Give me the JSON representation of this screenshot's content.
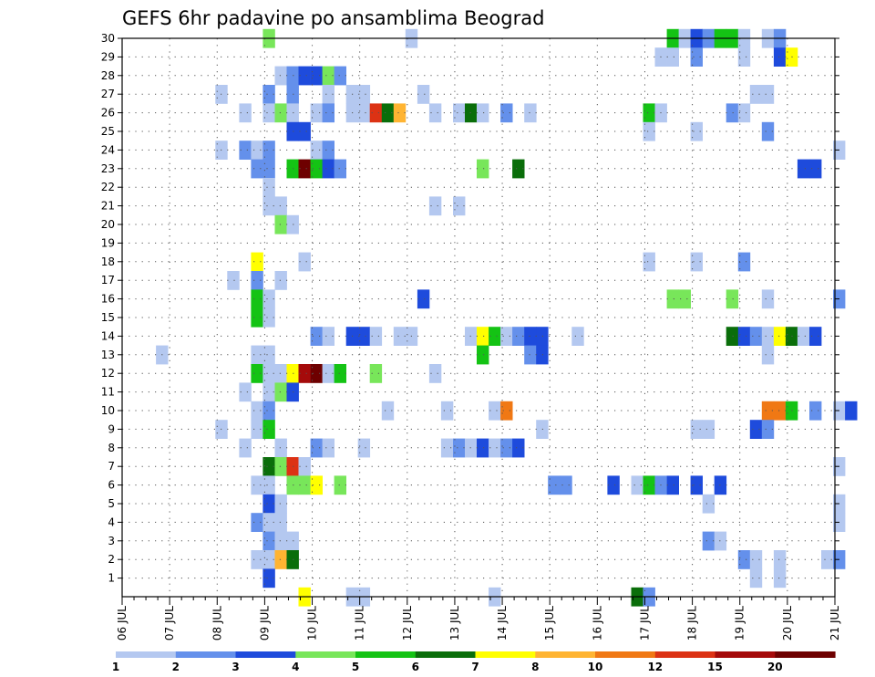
{
  "chart_data": {
    "type": "heatmap",
    "title": "GEFS 6hr padavine po ansamblima Beograd",
    "xlabel": "",
    "ylabel": "",
    "x_tick_labels": [
      "06 JUL",
      "07 JUL",
      "08 JUL",
      "09 JUL",
      "10 JUL",
      "11 JUL",
      "12 JUL",
      "13 JUL",
      "14 JUL",
      "15 JUL",
      "16 JUL",
      "17 JUL",
      "18 JUL",
      "19 JUL",
      "20 JUL",
      "21 JUL"
    ],
    "x_steps_per_day": 4,
    "y_tick_labels": [
      "1",
      "2",
      "3",
      "4",
      "5",
      "6",
      "7",
      "8",
      "9",
      "10",
      "11",
      "12",
      "13",
      "14",
      "15",
      "16",
      "17",
      "18",
      "19",
      "20",
      "21",
      "22",
      "23",
      "24",
      "25",
      "26",
      "27",
      "28",
      "29",
      "30"
    ],
    "member_range": [
      0,
      30
    ],
    "grid": true,
    "legend_position": "bottom",
    "colorbar": {
      "labels": [
        "1",
        "2",
        "3",
        "4",
        "5",
        "6",
        "7",
        "8",
        "10",
        "12",
        "15",
        "20"
      ],
      "colors": [
        "#b4c8f0",
        "#6490eb",
        "#1e4bdc",
        "#78e65a",
        "#14c314",
        "#0a6e0a",
        "#ffff00",
        "#ffb432",
        "#f07814",
        "#dc3214",
        "#a50a0a",
        "#6e0000"
      ]
    },
    "cells": [
      [
        0,
        30,
        4
      ],
      [
        12,
        30,
        1
      ],
      [
        34,
        30,
        5
      ],
      [
        35,
        30,
        1
      ],
      [
        36,
        30,
        3
      ],
      [
        37,
        30,
        2
      ],
      [
        38,
        30,
        5
      ],
      [
        39,
        30,
        5
      ],
      [
        40,
        30,
        1
      ],
      [
        42,
        30,
        1
      ],
      [
        43,
        30,
        2
      ],
      [
        33,
        29,
        1
      ],
      [
        34,
        29,
        1
      ],
      [
        36,
        29,
        2
      ],
      [
        40,
        29,
        1
      ],
      [
        43,
        29,
        3
      ],
      [
        44,
        29,
        7
      ],
      [
        1,
        28,
        1
      ],
      [
        2,
        28,
        2
      ],
      [
        3,
        28,
        3
      ],
      [
        4,
        28,
        3
      ],
      [
        5,
        28,
        4
      ],
      [
        6,
        28,
        2
      ],
      [
        -4,
        27,
        1
      ],
      [
        0,
        27,
        2
      ],
      [
        2,
        27,
        2
      ],
      [
        5,
        27,
        1
      ],
      [
        7,
        27,
        1
      ],
      [
        8,
        27,
        1
      ],
      [
        13,
        27,
        1
      ],
      [
        41,
        27,
        1
      ],
      [
        42,
        27,
        1
      ],
      [
        -2,
        26,
        1
      ],
      [
        0,
        26,
        1
      ],
      [
        1,
        26,
        4
      ],
      [
        2,
        26,
        1
      ],
      [
        4,
        26,
        1
      ],
      [
        5,
        26,
        2
      ],
      [
        7,
        26,
        1
      ],
      [
        8,
        26,
        1
      ],
      [
        9,
        26,
        10
      ],
      [
        10,
        26,
        6
      ],
      [
        11,
        26,
        8
      ],
      [
        14,
        26,
        1
      ],
      [
        16,
        26,
        1
      ],
      [
        17,
        26,
        6
      ],
      [
        18,
        26,
        1
      ],
      [
        20,
        26,
        2
      ],
      [
        22,
        26,
        1
      ],
      [
        32,
        26,
        5
      ],
      [
        33,
        26,
        1
      ],
      [
        39,
        26,
        2
      ],
      [
        40,
        26,
        1
      ],
      [
        2,
        25,
        3
      ],
      [
        3,
        25,
        3
      ],
      [
        32,
        25,
        1
      ],
      [
        36,
        25,
        1
      ],
      [
        42,
        25,
        2
      ],
      [
        -4,
        24,
        1
      ],
      [
        -2,
        24,
        2
      ],
      [
        -1,
        24,
        1
      ],
      [
        0,
        24,
        2
      ],
      [
        4,
        24,
        1
      ],
      [
        5,
        24,
        2
      ],
      [
        48,
        24,
        1
      ],
      [
        -1,
        23,
        2
      ],
      [
        0,
        23,
        2
      ],
      [
        2,
        23,
        5
      ],
      [
        3,
        23,
        12
      ],
      [
        4,
        23,
        5
      ],
      [
        5,
        23,
        3
      ],
      [
        6,
        23,
        2
      ],
      [
        18,
        23,
        4
      ],
      [
        21,
        23,
        6
      ],
      [
        45,
        23,
        3
      ],
      [
        46,
        23,
        3
      ],
      [
        0,
        22,
        1
      ],
      [
        0,
        21,
        1
      ],
      [
        1,
        21,
        1
      ],
      [
        14,
        21,
        1
      ],
      [
        16,
        21,
        1
      ],
      [
        1,
        20,
        4
      ],
      [
        2,
        20,
        1
      ],
      [
        -1,
        18,
        7
      ],
      [
        3,
        18,
        1
      ],
      [
        32,
        18,
        1
      ],
      [
        36,
        18,
        1
      ],
      [
        40,
        18,
        2
      ],
      [
        -3,
        17,
        1
      ],
      [
        -1,
        17,
        2
      ],
      [
        1,
        17,
        1
      ],
      [
        -1,
        16,
        5
      ],
      [
        0,
        16,
        1
      ],
      [
        13,
        16,
        3
      ],
      [
        34,
        16,
        4
      ],
      [
        35,
        16,
        4
      ],
      [
        39,
        16,
        4
      ],
      [
        42,
        16,
        1
      ],
      [
        48,
        16,
        2
      ],
      [
        -1,
        15,
        5
      ],
      [
        0,
        15,
        1
      ],
      [
        4,
        14,
        2
      ],
      [
        5,
        14,
        1
      ],
      [
        7,
        14,
        3
      ],
      [
        8,
        14,
        3
      ],
      [
        9,
        14,
        1
      ],
      [
        11,
        14,
        1
      ],
      [
        12,
        14,
        1
      ],
      [
        17,
        14,
        1
      ],
      [
        18,
        14,
        7
      ],
      [
        19,
        14,
        5
      ],
      [
        20,
        14,
        1
      ],
      [
        21,
        14,
        2
      ],
      [
        22,
        14,
        3
      ],
      [
        23,
        14,
        3
      ],
      [
        26,
        14,
        1
      ],
      [
        39,
        14,
        6
      ],
      [
        40,
        14,
        3
      ],
      [
        41,
        14,
        2
      ],
      [
        42,
        14,
        1
      ],
      [
        43,
        14,
        7
      ],
      [
        44,
        14,
        6
      ],
      [
        45,
        14,
        1
      ],
      [
        46,
        14,
        3
      ],
      [
        -9,
        13,
        1
      ],
      [
        18,
        13,
        5
      ],
      [
        22,
        13,
        2
      ],
      [
        23,
        13,
        3
      ],
      [
        -1,
        13,
        1
      ],
      [
        0,
        13,
        1
      ],
      [
        42,
        13,
        1
      ],
      [
        -1,
        12,
        5
      ],
      [
        0,
        12,
        1
      ],
      [
        1,
        12,
        1
      ],
      [
        2,
        12,
        7
      ],
      [
        3,
        12,
        11
      ],
      [
        4,
        12,
        12
      ],
      [
        5,
        12,
        1
      ],
      [
        6,
        12,
        5
      ],
      [
        9,
        12,
        4
      ],
      [
        14,
        12,
        1
      ],
      [
        -2,
        11,
        1
      ],
      [
        0,
        11,
        1
      ],
      [
        1,
        11,
        4
      ],
      [
        2,
        11,
        3
      ],
      [
        -1,
        10,
        1
      ],
      [
        0,
        10,
        2
      ],
      [
        10,
        10,
        1
      ],
      [
        15,
        10,
        1
      ],
      [
        19,
        10,
        1
      ],
      [
        20,
        10,
        9
      ],
      [
        42,
        10,
        9
      ],
      [
        43,
        10,
        9
      ],
      [
        44,
        10,
        5
      ],
      [
        46,
        10,
        2
      ],
      [
        48,
        10,
        1
      ],
      [
        49,
        10,
        3
      ],
      [
        -1,
        9,
        1
      ],
      [
        0,
        9,
        5
      ],
      [
        -4,
        9,
        1
      ],
      [
        23,
        9,
        1
      ],
      [
        36,
        9,
        1
      ],
      [
        37,
        9,
        1
      ],
      [
        41,
        9,
        3
      ],
      [
        42,
        9,
        2
      ],
      [
        -2,
        8,
        1
      ],
      [
        1,
        8,
        1
      ],
      [
        4,
        8,
        2
      ],
      [
        5,
        8,
        1
      ],
      [
        8,
        8,
        1
      ],
      [
        15,
        8,
        1
      ],
      [
        16,
        8,
        2
      ],
      [
        17,
        8,
        1
      ],
      [
        18,
        8,
        3
      ],
      [
        19,
        8,
        1
      ],
      [
        20,
        8,
        2
      ],
      [
        21,
        8,
        3
      ],
      [
        0,
        7,
        6
      ],
      [
        1,
        7,
        4
      ],
      [
        2,
        7,
        10
      ],
      [
        3,
        7,
        1
      ],
      [
        48,
        7,
        1
      ],
      [
        -1,
        6,
        1
      ],
      [
        0,
        6,
        1
      ],
      [
        2,
        6,
        4
      ],
      [
        3,
        6,
        4
      ],
      [
        4,
        6,
        7
      ],
      [
        6,
        6,
        4
      ],
      [
        24,
        6,
        2
      ],
      [
        25,
        6,
        2
      ],
      [
        29,
        6,
        3
      ],
      [
        31,
        6,
        1
      ],
      [
        32,
        6,
        5
      ],
      [
        33,
        6,
        2
      ],
      [
        34,
        6,
        3
      ],
      [
        36,
        6,
        3
      ],
      [
        38,
        6,
        3
      ],
      [
        0,
        5,
        3
      ],
      [
        1,
        5,
        1
      ],
      [
        37,
        5,
        1
      ],
      [
        48,
        5,
        1
      ],
      [
        -1,
        4,
        2
      ],
      [
        0,
        4,
        1
      ],
      [
        1,
        4,
        1
      ],
      [
        48,
        4,
        1
      ],
      [
        0,
        3,
        2
      ],
      [
        1,
        3,
        1
      ],
      [
        2,
        3,
        1
      ],
      [
        37,
        3,
        2
      ],
      [
        38,
        3,
        1
      ],
      [
        -1,
        2,
        1
      ],
      [
        0,
        2,
        1
      ],
      [
        1,
        2,
        8
      ],
      [
        2,
        2,
        6
      ],
      [
        40,
        2,
        2
      ],
      [
        41,
        2,
        1
      ],
      [
        43,
        2,
        1
      ],
      [
        47,
        2,
        1
      ],
      [
        48,
        2,
        2
      ],
      [
        0,
        1,
        3
      ],
      [
        41,
        1,
        1
      ],
      [
        43,
        1,
        1
      ],
      [
        3,
        0,
        7
      ],
      [
        7,
        0,
        1
      ],
      [
        8,
        0,
        1
      ],
      [
        19,
        0,
        1
      ],
      [
        31,
        0,
        6
      ],
      [
        32,
        0,
        2
      ]
    ]
  }
}
